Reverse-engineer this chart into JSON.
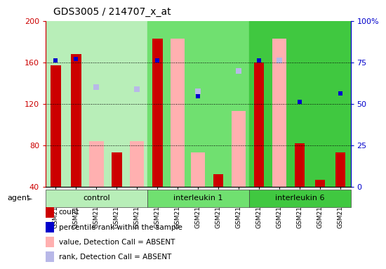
{
  "title": "GDS3005 / 214707_x_at",
  "samples": [
    "GSM211500",
    "GSM211501",
    "GSM211502",
    "GSM211503",
    "GSM211504",
    "GSM211505",
    "GSM211506",
    "GSM211507",
    "GSM211508",
    "GSM211509",
    "GSM211510",
    "GSM211511",
    "GSM211512",
    "GSM211513",
    "GSM211514"
  ],
  "groups": [
    {
      "label": "control",
      "color": "#b8eeb8",
      "start": 0,
      "end": 5
    },
    {
      "label": "interleukin 1",
      "color": "#70e070",
      "start": 5,
      "end": 10
    },
    {
      "label": "interleukin 6",
      "color": "#40c840",
      "start": 10,
      "end": 15
    }
  ],
  "count_values": [
    157,
    168,
    null,
    73,
    null,
    183,
    null,
    null,
    52,
    null,
    160,
    null,
    82,
    47,
    73
  ],
  "absent_value": [
    null,
    null,
    84,
    null,
    84,
    null,
    183,
    73,
    null,
    113,
    null,
    183,
    null,
    null,
    null
  ],
  "percentile_values": [
    162,
    163,
    null,
    null,
    null,
    162,
    null,
    127,
    null,
    null,
    162,
    null,
    122,
    null,
    130
  ],
  "absent_rank": [
    null,
    null,
    136,
    null,
    134,
    null,
    null,
    132,
    null,
    152,
    null,
    162,
    null,
    null,
    null
  ],
  "ylim": [
    40,
    200
  ],
  "yticks": [
    40,
    80,
    120,
    160,
    200
  ],
  "right_ytick_labels": [
    "0",
    "25",
    "50",
    "75",
    "100%"
  ],
  "right_ytick_vals": [
    40,
    80,
    120,
    160,
    200
  ],
  "count_color": "#cc0000",
  "percentile_color": "#0000cc",
  "absent_value_color": "#ffb0b0",
  "absent_rank_color": "#b8b8e8",
  "bar_width": 0.5,
  "absent_bar_width": 0.7,
  "agent_label": "agent",
  "legend_items": [
    {
      "label": "count",
      "color": "#cc0000"
    },
    {
      "label": "percentile rank within the sample",
      "color": "#0000cc"
    },
    {
      "label": "value, Detection Call = ABSENT",
      "color": "#ffb0b0"
    },
    {
      "label": "rank, Detection Call = ABSENT",
      "color": "#b8b8e8"
    }
  ],
  "plot_bg": "#ffffff",
  "axes_bg": "#d8d8d8"
}
